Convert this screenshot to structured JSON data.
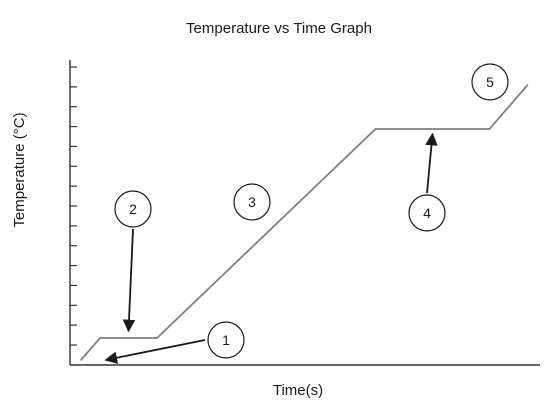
{
  "chart_data": {
    "type": "line",
    "title": "Temperature vs Time Graph",
    "xlabel": "Time(s)",
    "ylabel": "Temperature (°C)",
    "grid": false,
    "legend": "none",
    "y_tick_count": 15,
    "x": [
      0,
      1,
      4,
      15.5,
      21.5,
      23.5
    ],
    "y": [
      0,
      1,
      1,
      10.5,
      10.5,
      12.5
    ],
    "xlim": [
      -1,
      24
    ],
    "ylim": [
      -1,
      14
    ],
    "line_color": "#7f7f7f",
    "markers": [
      {
        "label": "1",
        "arrow_to": [
          1.3,
          0
        ]
      },
      {
        "label": "2",
        "arrow_to": [
          2.5,
          1
        ]
      },
      {
        "label": "3"
      },
      {
        "label": "4",
        "arrow_to": [
          18.5,
          10.5
        ]
      },
      {
        "label": "5"
      }
    ]
  }
}
